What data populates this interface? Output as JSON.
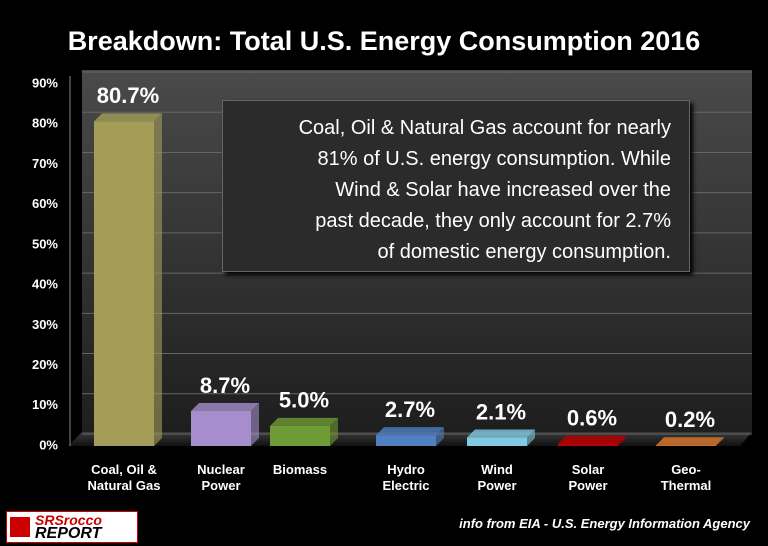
{
  "chart_data": {
    "type": "bar",
    "title": "Breakdown: Total U.S. Energy Consumption 2016",
    "categories": [
      "Coal, Oil &\nNatural Gas",
      "Nuclear\nPower",
      "Biomass",
      "Hydro\nElectric",
      "Wind\nPower",
      "Solar\nPower",
      "Geo-\nThermal"
    ],
    "values": [
      80.7,
      8.7,
      5.0,
      2.7,
      2.1,
      0.6,
      0.2
    ],
    "value_labels": [
      "80.7%",
      "8.7%",
      "5.0%",
      "2.7%",
      "2.1%",
      "0.6%",
      "0.2%"
    ],
    "colors": [
      "#a39d58",
      "#a58ecb",
      "#6f9b36",
      "#4f80c2",
      "#80cbe3",
      "#c00000",
      "#e07b30"
    ],
    "ylim": [
      0,
      90
    ],
    "yticks": [
      {
        "value": 0,
        "label": "0%"
      },
      {
        "value": 10,
        "label": "10%"
      },
      {
        "value": 20,
        "label": "20%"
      },
      {
        "value": 30,
        "label": "30%"
      },
      {
        "value": 40,
        "label": "40%"
      },
      {
        "value": 50,
        "label": "50%"
      },
      {
        "value": 60,
        "label": "60%"
      },
      {
        "value": 70,
        "label": "70%"
      },
      {
        "value": 80,
        "label": "80%"
      },
      {
        "value": 90,
        "label": "90%"
      }
    ],
    "grid": true,
    "annotation": "Coal, Oil & Natural Gas account for nearly\n81% of U.S. energy consumption.  While\nWind & Solar have increased over the\npast decade, they only account for 2.7%\nof domestic energy consumption.",
    "source": "info from EIA - U.S. Energy Information Agency",
    "logo": [
      "SRSrocco",
      "REPORT"
    ]
  }
}
